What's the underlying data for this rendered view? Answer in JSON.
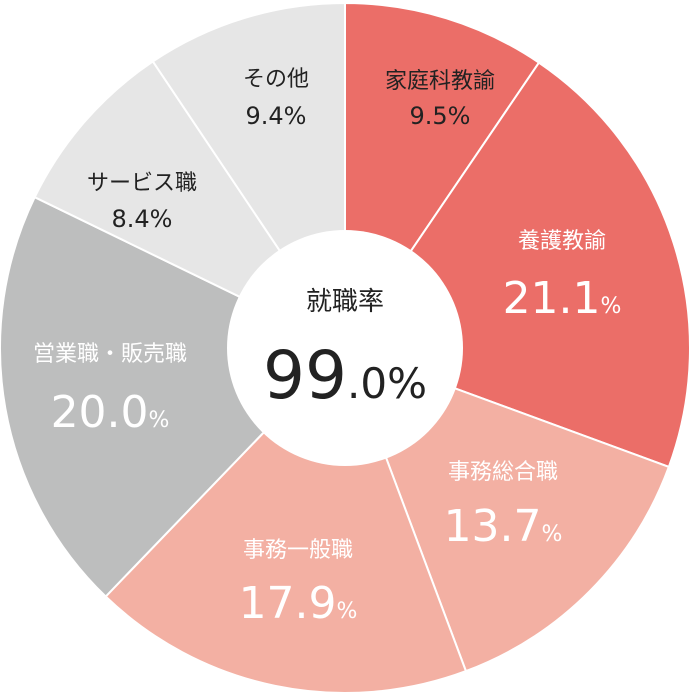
{
  "chart_data": {
    "type": "pie",
    "center_label": "就職率",
    "center_value": "99.0",
    "unit": "%",
    "slices": [
      {
        "name": "家庭科教諭",
        "value": 9.5,
        "color": "#eb6e68"
      },
      {
        "name": "養護教諭",
        "value": 21.1,
        "color": "#eb6e68"
      },
      {
        "name": "事務総合職",
        "value": 13.7,
        "color": "#f3b0a3"
      },
      {
        "name": "事務一般職",
        "value": 17.9,
        "color": "#f3b0a3"
      },
      {
        "name": "営業職・販売職",
        "value": 20.0,
        "color": "#bdbebe"
      },
      {
        "name": "サービス職",
        "value": 8.4,
        "color": "#e6e6e6"
      },
      {
        "name": "その他",
        "value": 9.4,
        "color": "#e6e6e6"
      }
    ]
  }
}
